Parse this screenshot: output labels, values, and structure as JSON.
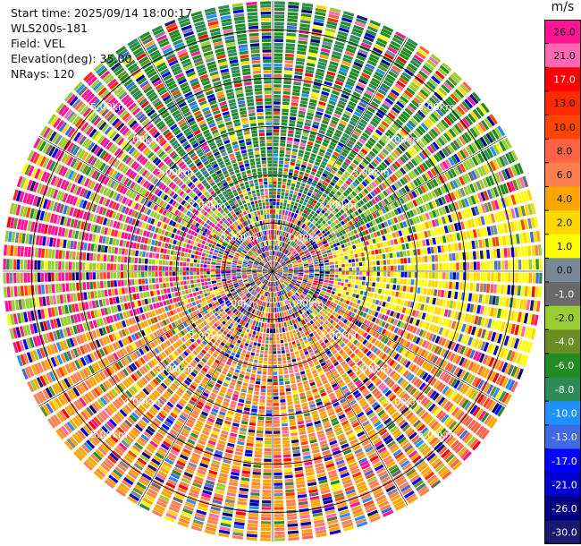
{
  "info": {
    "start_time": "Start time: 2025/09/14 18:00:17",
    "instrument": "WLS200s-181",
    "field": "Field: VEL",
    "elevation": "Elevation(deg): 35.00",
    "nrays": "NRays: 120"
  },
  "chart_data": {
    "type": "heatmap",
    "projection": "polar-ppi",
    "range_unit": "km",
    "ring_labels": [
      "1.00km",
      "2.00km",
      "3.00km",
      "4.00km",
      "5.00km"
    ],
    "ring_ranges_km": [
      1,
      2,
      3,
      4,
      5
    ],
    "max_range_km": 5.6,
    "n_rays": 120,
    "range_gates": 26,
    "colorbar": {
      "unit": "m/s",
      "ticks": [
        "26.0",
        "21.0",
        "17.0",
        "13.0",
        "10.0",
        "8.0",
        "6.0",
        "4.0",
        "2.0",
        "1.0",
        "0.0",
        "-1.0",
        "-2.0",
        "-4.0",
        "-6.0",
        "-8.0",
        "-10.0",
        "-13.0",
        "-17.0",
        "-21.0",
        "-26.0",
        "-30.0"
      ],
      "colors": [
        "#ff1493",
        "#ff69b4",
        "#ff0000",
        "#ff2a00",
        "#ff4500",
        "#ff6347",
        "#ff7f50",
        "#ffa500",
        "#ffd700",
        "#ffff00",
        "#778899",
        "#696969",
        "#9acd32",
        "#6b8e23",
        "#228b22",
        "#2e8b57",
        "#1e90ff",
        "#4169e1",
        "#0000ff",
        "#0000cd",
        "#000080",
        "#191970"
      ]
    }
  }
}
